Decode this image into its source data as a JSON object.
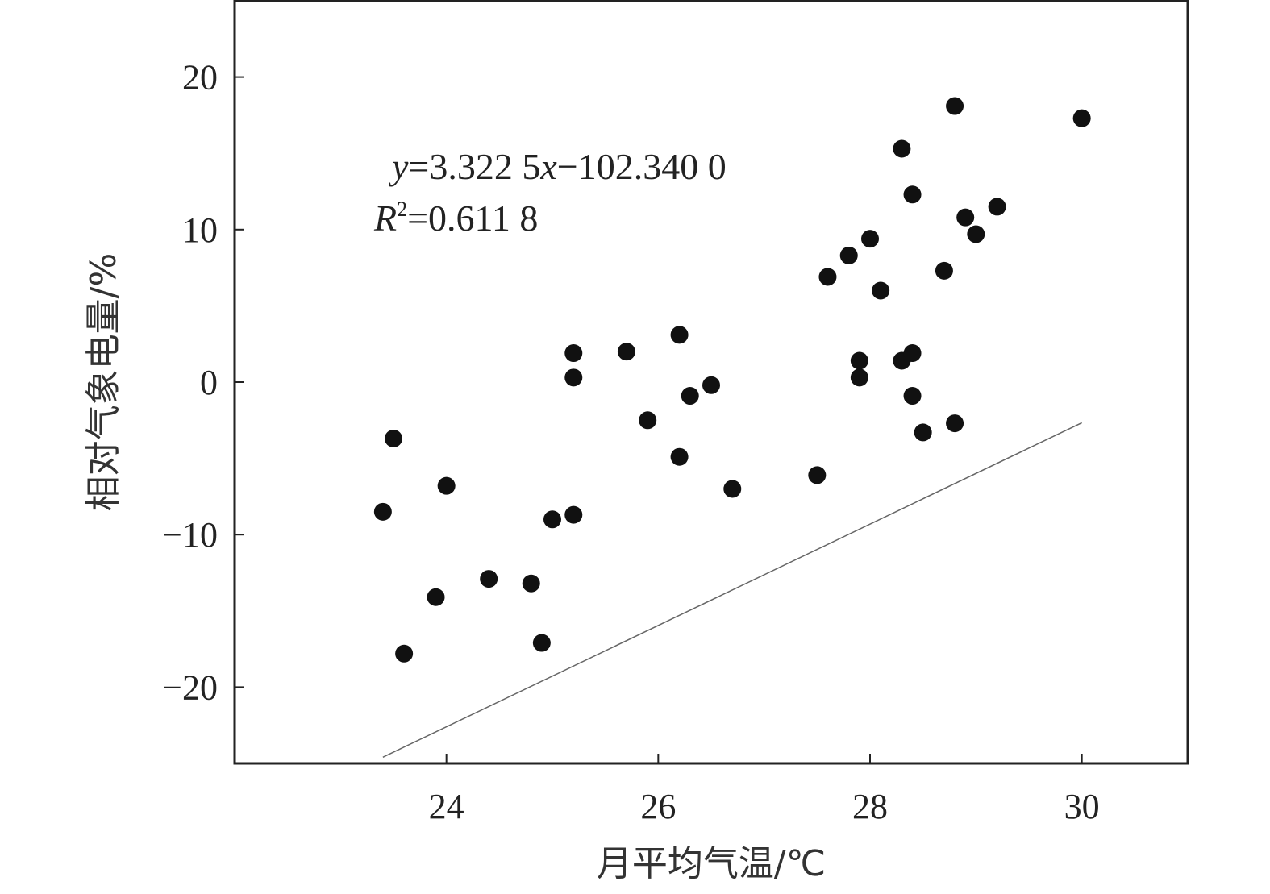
{
  "chart_data": {
    "type": "scatter",
    "xlabel": "月平均气温/℃",
    "ylabel": "相对气象电量/%",
    "xlim": [
      22,
      31
    ],
    "ylim": [
      -25,
      25
    ],
    "xticks": [
      24,
      26,
      28,
      30
    ],
    "yticks": [
      -20,
      -10,
      0,
      10,
      20
    ],
    "xtick_labels": [
      "24",
      "26",
      "28",
      "30"
    ],
    "ytick_labels": [
      "−20",
      "−10",
      "0",
      "10",
      "20"
    ],
    "grid": false,
    "point_color": "#111111",
    "line_color": "#666666",
    "equation": {
      "y": "y",
      "eq_rest": "=3.322 5",
      "x": "x",
      "eq_tail": "−102.340 0",
      "r": "R",
      "r_sup": "2",
      "r_rest": "=0.611 8"
    },
    "trendline": {
      "slope": 3.3225,
      "intercept": -102.34,
      "x_range": [
        23.4,
        30.0
      ]
    },
    "points": [
      {
        "x": 23.4,
        "y": -8.5
      },
      {
        "x": 23.5,
        "y": -3.7
      },
      {
        "x": 23.6,
        "y": -17.8
      },
      {
        "x": 23.9,
        "y": -14.1
      },
      {
        "x": 24.0,
        "y": -6.8
      },
      {
        "x": 24.4,
        "y": -12.9
      },
      {
        "x": 24.8,
        "y": -13.2
      },
      {
        "x": 24.9,
        "y": -17.1
      },
      {
        "x": 25.0,
        "y": -9.0
      },
      {
        "x": 25.2,
        "y": -8.7
      },
      {
        "x": 25.2,
        "y": 0.3
      },
      {
        "x": 25.2,
        "y": 1.9
      },
      {
        "x": 25.7,
        "y": 2.0
      },
      {
        "x": 25.9,
        "y": -2.5
      },
      {
        "x": 26.2,
        "y": 3.1
      },
      {
        "x": 26.2,
        "y": -4.9
      },
      {
        "x": 26.3,
        "y": -0.9
      },
      {
        "x": 26.5,
        "y": -0.2
      },
      {
        "x": 26.7,
        "y": -7.0
      },
      {
        "x": 27.5,
        "y": -6.1
      },
      {
        "x": 27.6,
        "y": 6.9
      },
      {
        "x": 27.8,
        "y": 8.3
      },
      {
        "x": 27.9,
        "y": 1.4
      },
      {
        "x": 27.9,
        "y": 0.3
      },
      {
        "x": 28.0,
        "y": 9.4
      },
      {
        "x": 28.1,
        "y": 6.0
      },
      {
        "x": 28.3,
        "y": 15.3
      },
      {
        "x": 28.3,
        "y": 1.4
      },
      {
        "x": 28.4,
        "y": 12.3
      },
      {
        "x": 28.4,
        "y": 1.9
      },
      {
        "x": 28.4,
        "y": -0.9
      },
      {
        "x": 28.5,
        "y": -3.3
      },
      {
        "x": 28.7,
        "y": 7.3
      },
      {
        "x": 28.8,
        "y": 18.1
      },
      {
        "x": 28.8,
        "y": -2.7
      },
      {
        "x": 28.9,
        "y": 10.8
      },
      {
        "x": 29.0,
        "y": 9.7
      },
      {
        "x": 29.2,
        "y": 11.5
      },
      {
        "x": 30.0,
        "y": 17.3
      }
    ]
  }
}
